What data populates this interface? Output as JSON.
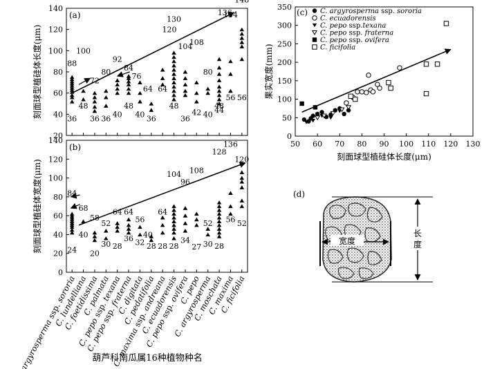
{
  "figure_xlabel": "葫芦科南瓜属16种植物种名",
  "species": [
    {
      "genus": "C.",
      "name": "argyrosperma",
      "ssp": " ssp. ",
      "sspname": "sororia"
    },
    {
      "genus": "C.",
      "name": "lundelliana",
      "ssp": "",
      "sspname": ""
    },
    {
      "genus": "C.",
      "name": "foetidissima",
      "ssp": "",
      "sspname": ""
    },
    {
      "genus": "C.",
      "name": "palmata",
      "ssp": "",
      "sspname": ""
    },
    {
      "genus": "C.",
      "name": "pepo",
      "ssp": " ssp. ",
      "sspname": "texana"
    },
    {
      "genus": "C.",
      "name": "pepo",
      "ssp": " ssp. ",
      "sspname": "fraterna"
    },
    {
      "genus": "C.",
      "name": "digitata",
      "ssp": "",
      "sspname": ""
    },
    {
      "genus": "C.",
      "name": "pedatifolia",
      "ssp": "",
      "sspname": ""
    },
    {
      "genus": "C.",
      "name": "maxima",
      "ssp": " ssp. ",
      "sspname": "andreana"
    },
    {
      "genus": "C.",
      "name": "ecuadorensis",
      "ssp": "",
      "sspname": ""
    },
    {
      "genus": "C.",
      "name": "pepo",
      "ssp": " ssp. ",
      "sspname": "ovifera"
    },
    {
      "genus": "C.",
      "name": "pepo",
      "ssp": "",
      "sspname": ""
    },
    {
      "genus": "C.",
      "name": "argyrosperma",
      "ssp": "",
      "sspname": ""
    },
    {
      "genus": "C.",
      "name": "moschata",
      "ssp": "",
      "sspname": ""
    },
    {
      "genus": "C.",
      "name": "maxima",
      "ssp": "",
      "sspname": ""
    },
    {
      "genus": "C.",
      "name": "ficifolia",
      "ssp": "",
      "sspname": ""
    }
  ],
  "chart_data": [
    {
      "panel": "(a)",
      "type": "scatter",
      "ylabel": "刻面球型植硅体长度(μm)",
      "ylim": [
        20,
        140
      ],
      "yticks": [
        20,
        40,
        60,
        80,
        100,
        120,
        140
      ],
      "labels": [
        {
          "x": 1,
          "y": 36,
          "t": "36"
        },
        {
          "x": 1,
          "y": 88,
          "t": "88"
        },
        {
          "x": 2,
          "y": 100,
          "t": "100"
        },
        {
          "x": 2,
          "y": 48,
          "t": "48"
        },
        {
          "x": 3,
          "y": 72,
          "t": "72"
        },
        {
          "x": 3,
          "y": 36,
          "t": "36"
        },
        {
          "x": 4,
          "y": 80,
          "t": "80"
        },
        {
          "x": 4,
          "y": 36,
          "t": "36"
        },
        {
          "x": 5,
          "y": 92,
          "t": "92"
        },
        {
          "x": 5,
          "y": 40,
          "t": "40"
        },
        {
          "x": 6,
          "y": 84,
          "t": "84"
        },
        {
          "x": 6,
          "y": 48,
          "t": "48"
        },
        {
          "x": 6.7,
          "y": 76,
          "t": "76"
        },
        {
          "x": 7,
          "y": 40,
          "t": "40"
        },
        {
          "x": 7.7,
          "y": 64,
          "t": "64"
        },
        {
          "x": 8,
          "y": 36,
          "t": "36"
        },
        {
          "x": 9,
          "y": 64,
          "t": "64"
        },
        {
          "x": 9.6,
          "y": 120,
          "t": "120"
        },
        {
          "x": 10,
          "y": 130,
          "t": "130"
        },
        {
          "x": 10,
          "y": 48,
          "t": "48"
        },
        {
          "x": 11,
          "y": 104,
          "t": "104"
        },
        {
          "x": 11,
          "y": 36,
          "t": "36"
        },
        {
          "x": 12,
          "y": 108,
          "t": "108"
        },
        {
          "x": 12,
          "y": 42,
          "t": "42"
        },
        {
          "x": 13,
          "y": 80,
          "t": "80"
        },
        {
          "x": 13,
          "y": 40,
          "t": "40"
        },
        {
          "x": 14,
          "y": 48,
          "t": "48"
        },
        {
          "x": 14,
          "y": 44,
          "t": "44"
        },
        {
          "x": 14.5,
          "y": 136,
          "t": "136"
        },
        {
          "x": 15,
          "y": 134,
          "t": "134"
        },
        {
          "x": 15,
          "y": 56,
          "t": "56"
        },
        {
          "x": 16,
          "y": 148,
          "t": "148"
        },
        {
          "x": 16,
          "y": 56,
          "t": "56"
        }
      ],
      "points": [
        {
          "x": 1,
          "y": [
            52,
            56,
            58,
            61,
            63,
            65,
            67,
            69,
            71,
            73,
            75
          ]
        },
        {
          "x": 2,
          "y": [
            54,
            62
          ]
        },
        {
          "x": 3,
          "y": [
            43,
            47,
            52,
            56,
            60
          ]
        },
        {
          "x": 4,
          "y": [
            48,
            56,
            62
          ]
        },
        {
          "x": 5,
          "y": [
            60,
            64,
            68,
            72
          ]
        },
        {
          "x": 6,
          "y": [
            60,
            64,
            68,
            71,
            74,
            76
          ]
        },
        {
          "x": 7,
          "y": [
            52,
            60,
            70
          ]
        },
        {
          "x": 8,
          "y": [
            44,
            50
          ]
        },
        {
          "x": 9,
          "y": [
            68,
            74,
            82
          ]
        },
        {
          "x": 10,
          "y": [
            54,
            58,
            62,
            66,
            70,
            74,
            78,
            82,
            86,
            90,
            94,
            98
          ]
        },
        {
          "x": 11,
          "y": [
            58,
            62,
            68,
            74,
            80
          ]
        },
        {
          "x": 12,
          "y": [
            52,
            60,
            70
          ]
        },
        {
          "x": 13,
          "y": [
            60,
            64
          ]
        },
        {
          "x": 14,
          "y": [
            50,
            54,
            58,
            62,
            66,
            72,
            78,
            84,
            92
          ]
        },
        {
          "x": 15,
          "y": [
            62,
            78,
            90
          ]
        },
        {
          "x": 16,
          "y": [
            92,
            104,
            108,
            112,
            116,
            120
          ]
        }
      ],
      "trend": {
        "from": [
          1,
          60
        ],
        "to": [
          15.3,
          136
        ]
      },
      "small_arrows": [
        {
          "x1": 1.6,
          "y1": 68,
          "x2": 2.6,
          "y2": 74
        },
        {
          "x1": 6.1,
          "y1": 80,
          "x2": 5,
          "y2": 76
        }
      ]
    },
    {
      "panel": "(b)",
      "type": "scatter",
      "ylabel": "刻面球型植硅体宽度(μm)",
      "ylim": [
        0,
        140
      ],
      "yticks": [
        0,
        20,
        40,
        60,
        80,
        100,
        120,
        140
      ],
      "labels": [
        {
          "x": 1,
          "y": 84,
          "t": "84"
        },
        {
          "x": 1,
          "y": 24,
          "t": "24"
        },
        {
          "x": 2,
          "y": 68,
          "t": "68"
        },
        {
          "x": 2,
          "y": 40,
          "t": "40"
        },
        {
          "x": 3,
          "y": 58,
          "t": "58"
        },
        {
          "x": 3,
          "y": 20,
          "t": "20"
        },
        {
          "x": 4,
          "y": 52,
          "t": "52"
        },
        {
          "x": 4,
          "y": 30,
          "t": "30"
        },
        {
          "x": 5,
          "y": 64,
          "t": "64"
        },
        {
          "x": 5,
          "y": 28,
          "t": "28"
        },
        {
          "x": 6,
          "y": 64,
          "t": "64"
        },
        {
          "x": 6,
          "y": 36,
          "t": "36"
        },
        {
          "x": 7,
          "y": 56,
          "t": "56"
        },
        {
          "x": 7,
          "y": 32,
          "t": "32"
        },
        {
          "x": 7.7,
          "y": 40,
          "t": "40"
        },
        {
          "x": 8,
          "y": 28,
          "t": "28"
        },
        {
          "x": 9,
          "y": 64,
          "t": "64"
        },
        {
          "x": 9,
          "y": 28,
          "t": "28"
        },
        {
          "x": 10,
          "y": 104,
          "t": "104"
        },
        {
          "x": 10,
          "y": 28,
          "t": "28"
        },
        {
          "x": 11,
          "y": 96,
          "t": "96"
        },
        {
          "x": 11,
          "y": 34,
          "t": "34"
        },
        {
          "x": 12,
          "y": 108,
          "t": "108"
        },
        {
          "x": 12,
          "y": 27,
          "t": "27"
        },
        {
          "x": 13,
          "y": 52,
          "t": "52"
        },
        {
          "x": 13,
          "y": 30,
          "t": "30"
        },
        {
          "x": 14,
          "y": 128,
          "t": "128"
        },
        {
          "x": 14,
          "y": 28,
          "t": "28"
        },
        {
          "x": 15,
          "y": 136,
          "t": "136"
        },
        {
          "x": 15,
          "y": 56,
          "t": "56"
        },
        {
          "x": 16,
          "y": 120,
          "t": "120"
        },
        {
          "x": 16,
          "y": 52,
          "t": "52"
        }
      ],
      "points": [
        {
          "x": 1,
          "y": [
            42,
            45,
            48,
            50,
            52,
            54,
            56,
            58,
            60,
            62
          ]
        },
        {
          "x": 2,
          "y": [
            54
          ]
        },
        {
          "x": 3,
          "y": [
            34,
            38,
            42
          ]
        },
        {
          "x": 4,
          "y": [
            36,
            44
          ]
        },
        {
          "x": 5,
          "y": [
            44,
            48,
            52
          ]
        },
        {
          "x": 6,
          "y": [
            42,
            46,
            50,
            56
          ]
        },
        {
          "x": 7,
          "y": [
            40,
            48
          ]
        },
        {
          "x": 8,
          "y": [
            34,
            38
          ]
        },
        {
          "x": 9,
          "y": [
            42,
            50,
            58
          ]
        },
        {
          "x": 10,
          "y": [
            36,
            42,
            46,
            50,
            54,
            58,
            62,
            66,
            70
          ]
        },
        {
          "x": 11,
          "y": [
            44,
            52,
            60,
            68
          ]
        },
        {
          "x": 12,
          "y": [
            50,
            56,
            62
          ]
        },
        {
          "x": 13,
          "y": [
            40,
            46
          ]
        },
        {
          "x": 14,
          "y": [
            38,
            42,
            46,
            50,
            54,
            58,
            62,
            66,
            70,
            74
          ]
        },
        {
          "x": 15,
          "y": [
            62,
            70,
            84
          ]
        },
        {
          "x": 16,
          "y": [
            70,
            76,
            90,
            96,
            100,
            106
          ]
        }
      ],
      "trend": {
        "from": [
          1.6,
          50
        ],
        "to": [
          16.3,
          116
        ]
      },
      "small_arrows": [
        {
          "x1": 1.7,
          "y1": 82,
          "x2": 0.9,
          "y2": 80
        },
        {
          "x1": 1.7,
          "y1": 72,
          "x2": 0.9,
          "y2": 68
        }
      ]
    },
    {
      "panel": "(c)",
      "type": "scatter",
      "xlabel": "刻面球型植硅体长度(μm)",
      "ylabel": "果实宽度(mm)",
      "xlim": [
        50,
        130
      ],
      "ylim": [
        0,
        350
      ],
      "xticks": [
        50,
        60,
        70,
        80,
        90,
        100,
        110,
        120,
        130
      ],
      "yticks": [
        0,
        50,
        100,
        150,
        200,
        250,
        300,
        350
      ],
      "legend": [
        {
          "genus": "C.",
          "sp": "argyrosperma",
          "ssp": " ssp. ",
          "sspname": "sororia",
          "marker": "filled-circle"
        },
        {
          "genus": "C.",
          "sp": "ecuadorensis",
          "ssp": "",
          "sspname": "",
          "marker": "open-circle"
        },
        {
          "genus": "C.",
          "sp": "pepo",
          "ssp": " ssp.",
          "sspname": "texana",
          "marker": "filled-triangle-down"
        },
        {
          "genus": "C.",
          "sp": "pepo",
          "ssp": " ssp. ",
          "sspname": "fraterna",
          "marker": "open-triangle-down"
        },
        {
          "genus": "C.",
          "sp": "pepo",
          "ssp": " ssp. ",
          "sspname": "ovifera",
          "marker": "filled-square"
        },
        {
          "genus": "C.",
          "sp": "ficifolia",
          "ssp": "",
          "sspname": "",
          "marker": "open-square"
        }
      ],
      "series": [
        {
          "marker": "filled-circle",
          "x": [
            54,
            56,
            57,
            58,
            60,
            62,
            64,
            66,
            68,
            70,
            72,
            74
          ],
          "y": [
            45,
            40,
            48,
            55,
            60,
            65,
            52,
            58,
            70,
            75,
            60,
            70
          ]
        },
        {
          "marker": "open-circle",
          "x": [
            73,
            76,
            78,
            80,
            82,
            83,
            84,
            85,
            87,
            88,
            97
          ],
          "y": [
            90,
            105,
            120,
            120,
            118,
            165,
            125,
            120,
            140,
            130,
            185
          ]
        },
        {
          "marker": "filled-triangle-down",
          "x": [
            55,
            58,
            62,
            66,
            70
          ],
          "y": [
            38,
            42,
            55,
            50,
            68
          ]
        },
        {
          "marker": "open-triangle-down",
          "x": [
            60,
            63,
            67,
            71,
            74
          ],
          "y": [
            50,
            55,
            62,
            72,
            78
          ]
        },
        {
          "marker": "filled-square",
          "x": [
            53,
            59
          ],
          "y": [
            88,
            78
          ]
        },
        {
          "marker": "open-square",
          "x": [
            75,
            77,
            92,
            93,
            109,
            109,
            114,
            118
          ],
          "y": [
            108,
            100,
            145,
            130,
            195,
            115,
            195,
            305
          ]
        }
      ],
      "trend": {
        "from": [
          53,
          65
        ],
        "to": [
          120,
          235
        ]
      }
    }
  ],
  "panel_d": {
    "label": "(d)",
    "width_label": "宽度",
    "length_label": "长度"
  }
}
